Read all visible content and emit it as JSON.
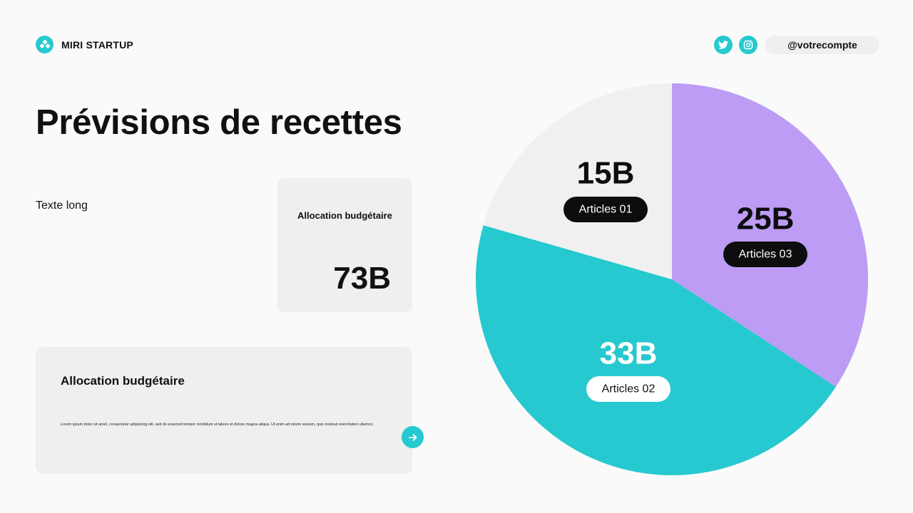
{
  "header": {
    "brand": "MIRI STARTUP",
    "handle": "@votrecompte",
    "social_icons": [
      "twitter-icon",
      "instagram-icon"
    ]
  },
  "main": {
    "title": "Prévisions de recettes",
    "long_text": "Texte long",
    "card_small": {
      "label": "Allocation budgétaire",
      "value": "73B"
    },
    "card_wide": {
      "heading": "Allocation budgétaire",
      "body": "Lorem ipsum dolor sit amet, consectetur adipiscing elit, sed do eiusmod tempor incididunt ut labore et dolore magna aliqua. Ut enim ad minim veniam, quis nostrud exercitation ullamco."
    }
  },
  "colors": {
    "accent": "#26c9cf",
    "purple": "#bd9cf5",
    "grey": "#f0f0f0",
    "dark": "#0d0d0d"
  },
  "chart_data": {
    "type": "pie",
    "title": "",
    "slices": [
      {
        "label": "Articles 03",
        "value": 25,
        "display": "25B",
        "color": "#bd9cf5"
      },
      {
        "label": "Articles 02",
        "value": 33,
        "display": "33B",
        "color": "#26c9cf"
      },
      {
        "label": "Articles 01",
        "value": 15,
        "display": "15B",
        "color": "#f0f0f0"
      }
    ]
  }
}
